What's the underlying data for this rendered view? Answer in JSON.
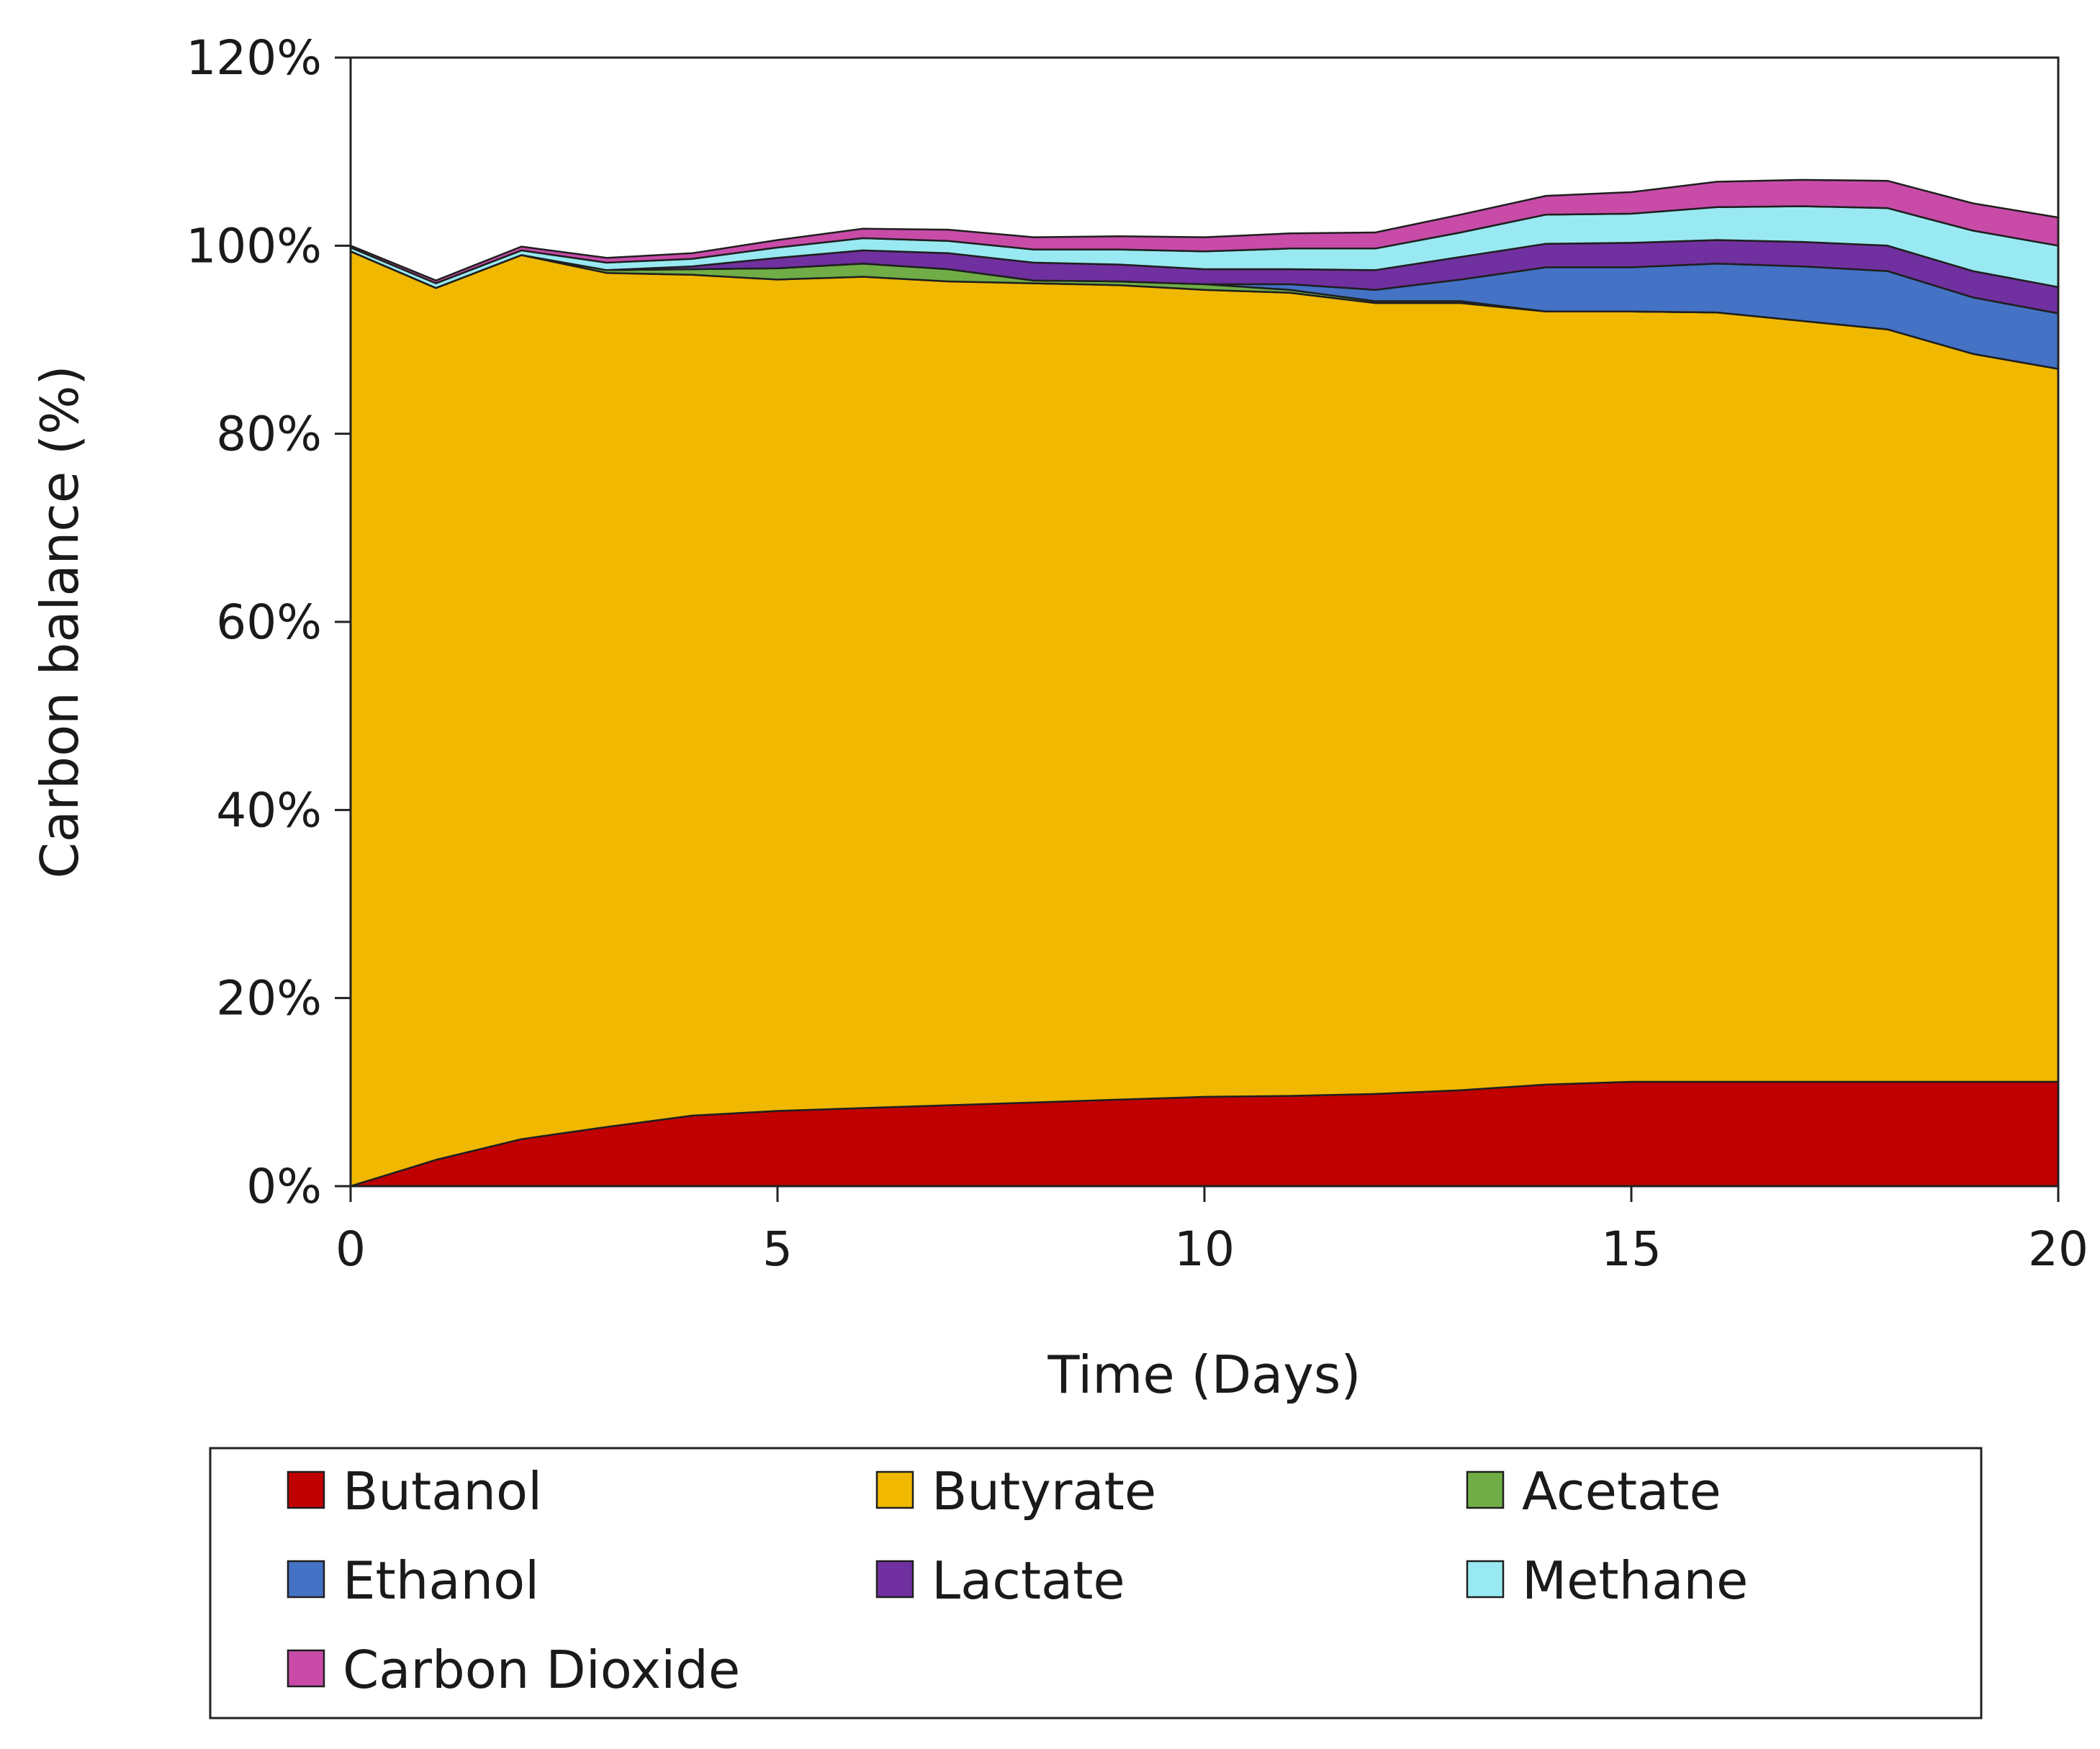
{
  "chart_data": {
    "type": "area",
    "stacked": true,
    "xlabel": "Time (Days)",
    "ylabel": "Carbon balance (%)",
    "xlim": [
      0,
      20
    ],
    "ylim": [
      0,
      120
    ],
    "x_ticks": [
      0,
      5,
      10,
      15,
      20
    ],
    "y_ticks": [
      0,
      20,
      40,
      60,
      80,
      100,
      120
    ],
    "y_tick_labels": [
      "0%",
      "20%",
      "40%",
      "60%",
      "80%",
      "100%",
      "120%"
    ],
    "x_tick_labels": [
      "0",
      "5",
      "10",
      "15",
      "20"
    ],
    "grid": false,
    "legend_position": "bottom",
    "x": [
      0,
      1,
      2,
      3,
      4,
      5,
      6,
      7,
      8,
      9,
      10,
      11,
      12,
      13,
      14,
      15,
      16,
      17,
      18,
      19,
      20
    ],
    "series": [
      {
        "name": "Butanol",
        "color": "#C00000",
        "values": [
          0,
          2.8,
          5.0,
          6.3,
          7.5,
          8.0,
          8.3,
          8.6,
          8.9,
          9.2,
          9.5,
          9.6,
          9.8,
          10.2,
          10.8,
          11.1,
          11.1,
          11.1,
          11.1,
          11.1,
          11.1
        ]
      },
      {
        "name": "Butyrate",
        "color": "#F0B800",
        "values": [
          99.4,
          92.7,
          94.0,
          90.8,
          89.4,
          88.4,
          88.4,
          87.6,
          87.1,
          86.6,
          85.8,
          85.4,
          84.1,
          83.7,
          82.2,
          81.9,
          81.8,
          80.9,
          80.0,
          77.4,
          75.8
        ]
      },
      {
        "name": "Acetate",
        "color": "#70AD47",
        "values": [
          0,
          0,
          0,
          0.3,
          0.6,
          1.2,
          1.4,
          1.3,
          0.3,
          0.4,
          0.6,
          0.3,
          0.2,
          0.2,
          0,
          0,
          0,
          0,
          0,
          0,
          0
        ]
      },
      {
        "name": "Ethanol",
        "color": "#4472C4",
        "values": [
          0,
          0,
          0,
          0,
          0,
          0,
          0,
          0,
          0,
          0,
          0,
          0.6,
          1.2,
          2.3,
          4.7,
          4.7,
          5.2,
          5.8,
          6.2,
          6.0,
          5.9
        ]
      },
      {
        "name": "Lactate",
        "color": "#7030A0",
        "values": [
          0,
          0,
          0,
          0,
          0.3,
          1.1,
          1.4,
          1.7,
          1.9,
          1.8,
          1.6,
          1.6,
          2.1,
          2.4,
          2.5,
          2.6,
          2.5,
          2.6,
          2.7,
          2.8,
          2.8
        ]
      },
      {
        "name": "Methane",
        "color": "#99E9F2",
        "values": [
          0.4,
          0.5,
          0.5,
          0.8,
          0.8,
          1.1,
          1.3,
          1.3,
          1.4,
          1.6,
          1.9,
          2.2,
          2.3,
          2.6,
          3.1,
          3.1,
          3.5,
          3.8,
          4.0,
          4.3,
          4.4
        ]
      },
      {
        "name": "Carbon Dioxide",
        "color": "#C84BA8",
        "values": [
          0.2,
          0.3,
          0.4,
          0.5,
          0.6,
          0.8,
          1.0,
          1.2,
          1.3,
          1.4,
          1.5,
          1.6,
          1.7,
          1.9,
          2.0,
          2.3,
          2.7,
          2.8,
          2.9,
          2.9,
          3.0
        ]
      }
    ]
  }
}
